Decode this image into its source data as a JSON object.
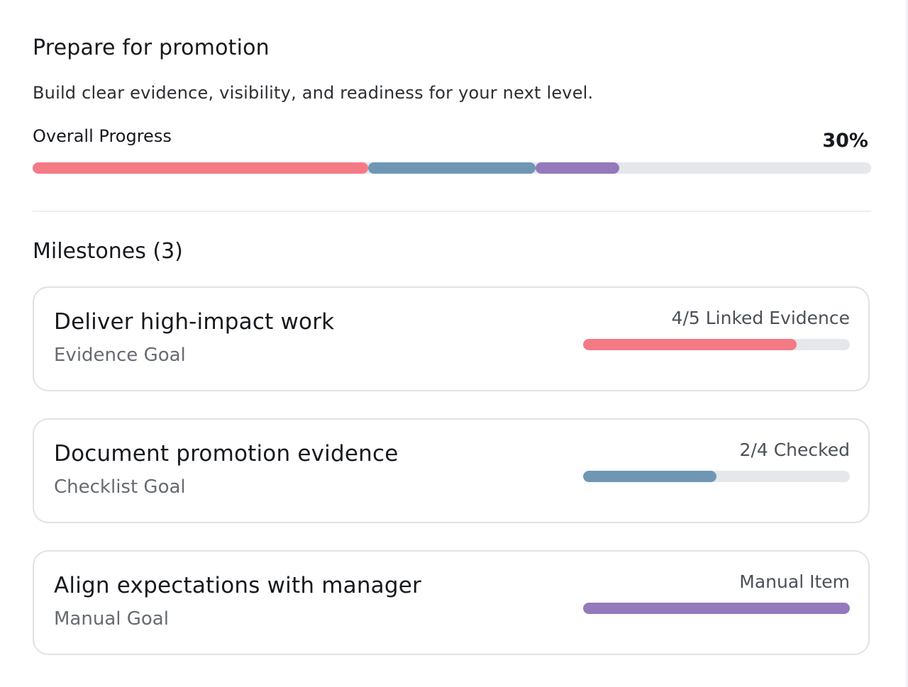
{
  "goal": {
    "title": "Prepare for promotion",
    "subtitle": "Build clear evidence, visibility, and readiness for your next level."
  },
  "overall_progress": {
    "label": "Overall Progress",
    "percent_text": "30%",
    "segments": [
      {
        "name": "evidence",
        "fraction": 0.4,
        "color": "#f47a86"
      },
      {
        "name": "checklist",
        "fraction": 0.2,
        "color": "#6f97b4"
      },
      {
        "name": "manual",
        "fraction": 0.1,
        "color": "#9479bc"
      }
    ],
    "track_color": "#e5e7eb"
  },
  "milestones": {
    "heading": "Milestones (3)",
    "items": [
      {
        "title": "Deliver high-impact work",
        "type": "Evidence Goal",
        "status": "4/5 Linked Evidence",
        "progress": 0.8,
        "color": "#f47a86"
      },
      {
        "title": "Document promotion evidence",
        "type": "Checklist Goal",
        "status": "2/4 Checked",
        "progress": 0.5,
        "color": "#6f97b4"
      },
      {
        "title": "Align expectations with manager",
        "type": "Manual Goal",
        "status": "Manual Item",
        "progress": 1.0,
        "color": "#9479bc"
      }
    ]
  }
}
